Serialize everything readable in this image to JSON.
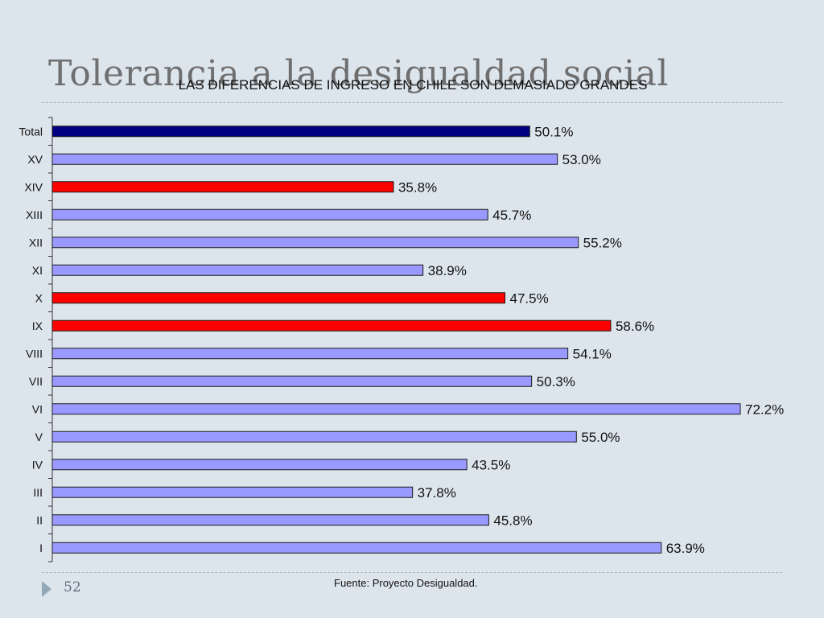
{
  "slide": {
    "title": "Tolerancia a la desigualdad social",
    "page_number": "52",
    "source": "Fuente: Proyecto Desigualdad."
  },
  "colors": {
    "total": "#000080",
    "default": "#9999ff",
    "highlight": "#ff0000",
    "bar_border": "#1a1a1a"
  },
  "chart_data": {
    "type": "bar",
    "orientation": "horizontal",
    "title": "LAS DIFERENCIAS DE INGRESO EN CHILE SON DEMASIADO GRANDES",
    "categories": [
      "Total",
      "XV",
      "XIV",
      "XIII",
      "XII",
      "XI",
      "X",
      "IX",
      "VIII",
      "VII",
      "VI",
      "V",
      "IV",
      "III",
      "II",
      "I"
    ],
    "values": [
      50.1,
      53.0,
      35.8,
      45.7,
      55.2,
      38.9,
      47.5,
      58.6,
      54.1,
      50.3,
      72.2,
      55.0,
      43.5,
      37.8,
      45.8,
      63.9
    ],
    "value_labels": [
      "50.1%",
      "53.0%",
      "35.8%",
      "45.7%",
      "55.2%",
      "38.9%",
      "47.5%",
      "58.6%",
      "54.1%",
      "50.3%",
      "72.2%",
      "55.0%",
      "43.5%",
      "37.8%",
      "45.8%",
      "63.9%"
    ],
    "bar_color_keys": [
      "total",
      "default",
      "highlight",
      "default",
      "default",
      "default",
      "highlight",
      "highlight",
      "default",
      "default",
      "default",
      "default",
      "default",
      "default",
      "default",
      "default"
    ],
    "xlim": [
      0,
      72.2
    ],
    "grid": false,
    "legend": "none"
  }
}
